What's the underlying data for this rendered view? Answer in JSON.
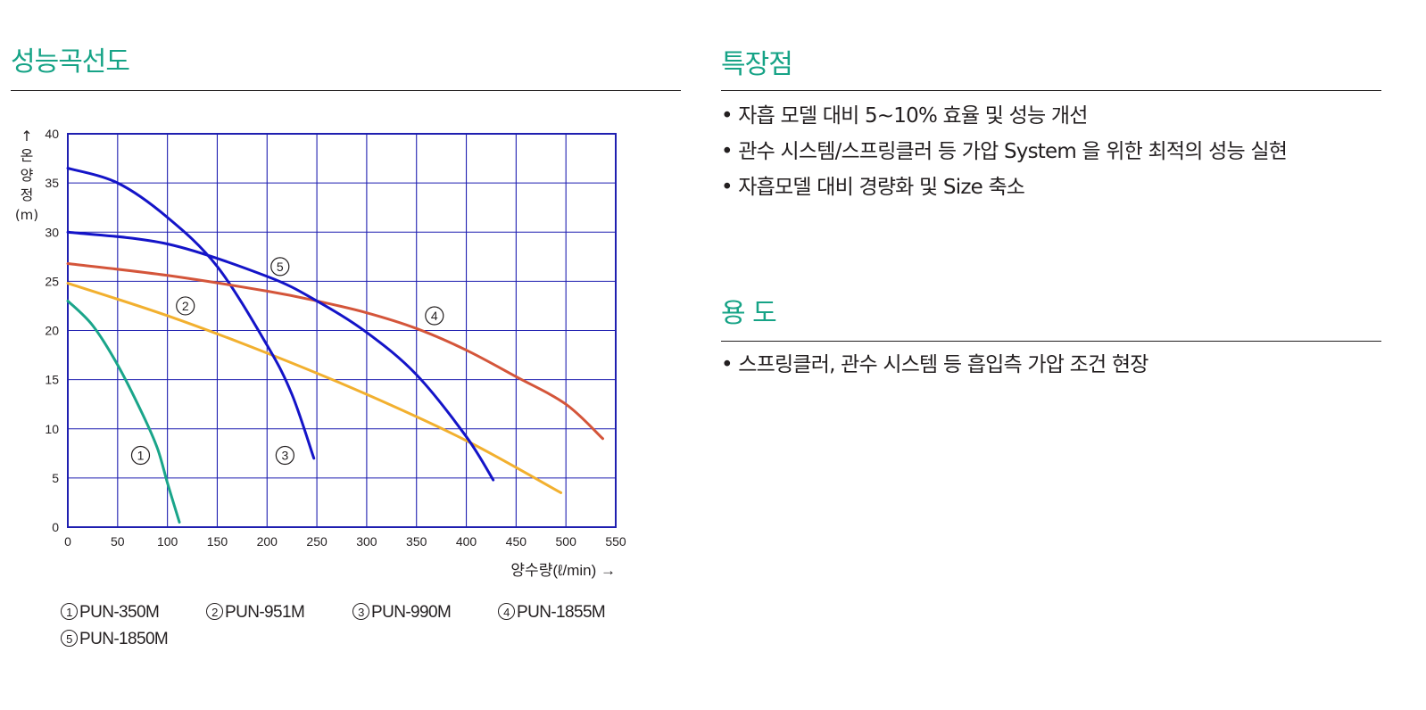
{
  "left_section": {
    "title": "성능곡선도"
  },
  "features": {
    "title": "특장점",
    "items": [
      "자흡 모델 대비 5~10% 효율 및 성능 개선",
      "관수 시스템/스프링클러 등 가압 System 을 위한 최적의 성능 실현",
      "자흡모델 대비 경량화 및 Size 축소"
    ]
  },
  "usage": {
    "title": "용 도",
    "items": [
      "스프링클러, 관수 시스템 등 흡입측 가압 조건 현장"
    ]
  },
  "colors": {
    "accent": "#16a386",
    "grid": "#1f1fb0",
    "series_1": "#1aa58a",
    "series_2": "#f2b02f",
    "series_3": "#1414c8",
    "series_4": "#d4553a",
    "series_5": "#1414c8"
  },
  "chart_data": {
    "type": "line",
    "ylabel": "↑ 온양정 (m)",
    "xlabel": "양수량(ℓ/min) →",
    "xlim": [
      0,
      550
    ],
    "ylim": [
      0,
      40
    ],
    "x_ticks": [
      "0",
      "50",
      "100",
      "150",
      "200",
      "250",
      "300",
      "350",
      "400",
      "450",
      "500",
      "550"
    ],
    "y_ticks": [
      "0",
      "5",
      "10",
      "15",
      "20",
      "25",
      "30",
      "35",
      "40"
    ],
    "grid": true,
    "legend_placement": "bottom",
    "series": [
      {
        "name": "PUN-350M",
        "marker": "1",
        "x": [
          0,
          25,
          50,
          75,
          90,
          100,
          112
        ],
        "y": [
          23,
          20.5,
          16.5,
          11.5,
          8,
          4.5,
          0.5
        ]
      },
      {
        "name": "PUN-951M",
        "marker": "2",
        "x": [
          0,
          100,
          200,
          300,
          400,
          495
        ],
        "y": [
          24.8,
          21.5,
          17.7,
          13.5,
          8.8,
          3.5
        ]
      },
      {
        "name": "PUN-990M",
        "marker": "3",
        "x": [
          0,
          50,
          100,
          150,
          200,
          225,
          247
        ],
        "y": [
          36.5,
          35,
          31.5,
          26.5,
          18.5,
          13.5,
          7
        ]
      },
      {
        "name": "PUN-1855M",
        "marker": "4",
        "x": [
          0,
          100,
          200,
          250,
          300,
          350,
          400,
          450,
          500,
          537
        ],
        "y": [
          26.8,
          25.6,
          24,
          23,
          21.8,
          20.2,
          18,
          15.3,
          12.5,
          9
        ]
      },
      {
        "name": "PUN-1850M",
        "marker": "5",
        "x": [
          0,
          100,
          200,
          250,
          300,
          350,
          400,
          427
        ],
        "y": [
          30,
          28.8,
          25.5,
          23,
          19.8,
          15.5,
          9.2,
          4.8
        ]
      }
    ],
    "annotations": [
      "1",
      "2",
      "3",
      "4",
      "5"
    ]
  }
}
